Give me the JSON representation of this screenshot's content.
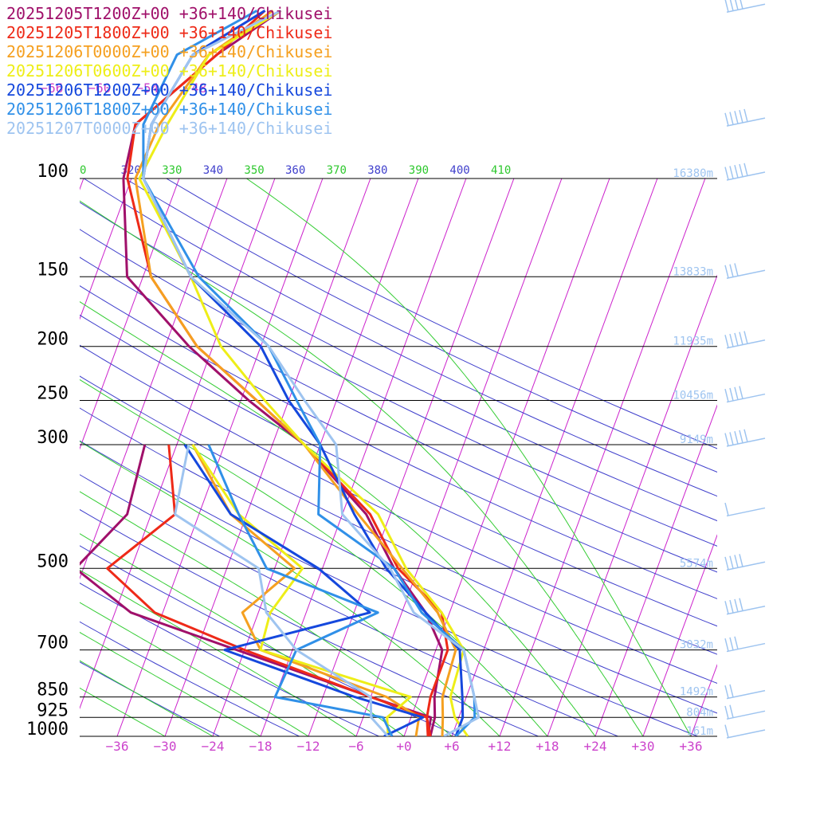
{
  "chart_data": {
    "type": "line",
    "title": "",
    "xlabel": "",
    "ylabel": "",
    "legend_position": "top-left",
    "legend": [
      {
        "label": "20251205T1200Z+00 +36+140/Chikusei",
        "color": "#a0106a"
      },
      {
        "label": "20251205T1800Z+00 +36+140/Chikusei",
        "color": "#ee2a18"
      },
      {
        "label": "20251206T0000Z+00 +36+140/Chikusei",
        "color": "#f5a020"
      },
      {
        "label": "20251206T0600Z+00 +36+140/Chikusei",
        "color": "#eeee18"
      },
      {
        "label": "20251206T1200Z+00 +36+140/Chikusei",
        "color": "#1548dd"
      },
      {
        "label": "20251206T1800Z+00 +36+140/Chikusei",
        "color": "#3090e8"
      },
      {
        "label": "20251207T0000Z+00 +36+140/Chikusei",
        "color": "#9ec4f0"
      }
    ],
    "pressure_ticks": [
      100,
      150,
      200,
      250,
      300,
      500,
      700,
      850,
      925,
      1000
    ],
    "temperature_ticks": [
      -36,
      -30,
      -24,
      -18,
      -12,
      -6,
      0,
      6,
      12,
      18,
      24,
      30,
      36
    ],
    "temperature_tick_labels": [
      "−36",
      "−30",
      "−24",
      "−18",
      "−12",
      "−6",
      "+0",
      "+6",
      "+12",
      "+18",
      "+24",
      "+30",
      "+36"
    ],
    "top_isotherm_labels": [
      {
        "t": -66,
        "text": "−66"
      },
      {
        "t": -60,
        "text": "−60"
      },
      {
        "t": -54,
        "text": "−54"
      },
      {
        "t": -48,
        "text": "−48"
      }
    ],
    "theta_labels": [
      {
        "text": "0",
        "color": "#2ec82e"
      },
      {
        "text": "320",
        "color": "#4040cc"
      },
      {
        "text": "330",
        "color": "#2ec82e"
      },
      {
        "text": "340",
        "color": "#4040cc"
      },
      {
        "text": "350",
        "color": "#2ec82e"
      },
      {
        "text": "360",
        "color": "#4040cc"
      },
      {
        "text": "370",
        "color": "#2ec82e"
      },
      {
        "text": "380",
        "color": "#4040cc"
      },
      {
        "text": "390",
        "color": "#2ec82e"
      },
      {
        "text": "400",
        "color": "#4040cc"
      },
      {
        "text": "410",
        "color": "#2ec82e"
      }
    ],
    "height_labels": [
      {
        "p": 100,
        "text": "16380m"
      },
      {
        "p": 150,
        "text": "13833m"
      },
      {
        "p": 200,
        "text": "11935m"
      },
      {
        "p": 250,
        "text": "10456m"
      },
      {
        "p": 300,
        "text": "9149m"
      },
      {
        "p": 500,
        "text": "5574m"
      },
      {
        "p": 700,
        "text": "3032m"
      },
      {
        "p": 850,
        "text": "1492m"
      },
      {
        "p": 925,
        "text": "804m"
      },
      {
        "p": 1000,
        "text": "161m"
      }
    ],
    "colors": {
      "isobar": "#000000",
      "isotherm": "#cc22cc",
      "dry_adiabat": "#4040cc",
      "moist_adiabat": "#33cc33",
      "tick_label": "#cc44cc",
      "pressure_label": "#000000",
      "height_label": "#9ec4f0",
      "wind_barb": "#9ec4f0"
    },
    "series": [
      {
        "name": "20251205T1200Z+00 +36+140/Chikusei",
        "color": "#a0106a",
        "temperature": [
          {
            "p": 1000,
            "t": 3.3
          },
          {
            "p": 925,
            "t": 3.0
          },
          {
            "p": 850,
            "t": 2.0
          },
          {
            "p": 700,
            "t": 0.8
          },
          {
            "p": 600,
            "t": -3.0
          },
          {
            "p": 500,
            "t": -9.0
          },
          {
            "p": 400,
            "t": -15.0
          },
          {
            "p": 300,
            "t": -26.0
          },
          {
            "p": 250,
            "t": -35.0
          },
          {
            "p": 200,
            "t": -45.0
          },
          {
            "p": 150,
            "t": -56.0
          },
          {
            "p": 100,
            "t": -61.0
          },
          {
            "p": 80,
            "t": -62.0
          },
          {
            "p": 60,
            "t": -55.0
          },
          {
            "p": 50,
            "t": -49.0
          }
        ],
        "dewpoint": [
          {
            "p": 1000,
            "t": 3.0
          },
          {
            "p": 925,
            "t": 2.5
          },
          {
            "p": 850,
            "t": -6.0
          },
          {
            "p": 700,
            "t": -25.0
          },
          {
            "p": 600,
            "t": -40.0
          },
          {
            "p": 500,
            "t": -49.0
          },
          {
            "p": 400,
            "t": -45.0
          },
          {
            "p": 300,
            "t": -46.0
          }
        ]
      },
      {
        "name": "20251205T1800Z+00 +36+140/Chikusei",
        "color": "#ee2a18",
        "temperature": [
          {
            "p": 1000,
            "t": 3.3
          },
          {
            "p": 925,
            "t": 2.0
          },
          {
            "p": 850,
            "t": 1.5
          },
          {
            "p": 700,
            "t": 1.5
          },
          {
            "p": 600,
            "t": -1.0
          },
          {
            "p": 500,
            "t": -8.5
          },
          {
            "p": 400,
            "t": -14.5
          },
          {
            "p": 300,
            "t": -26.0
          },
          {
            "p": 250,
            "t": -34.0
          },
          {
            "p": 200,
            "t": -44.0
          },
          {
            "p": 150,
            "t": -53.0
          },
          {
            "p": 100,
            "t": -60.5
          },
          {
            "p": 80,
            "t": -62.0
          },
          {
            "p": 60,
            "t": -55.0
          },
          {
            "p": 50,
            "t": -51.0
          }
        ],
        "dewpoint": [
          {
            "p": 1000,
            "t": 3.0
          },
          {
            "p": 925,
            "t": 2.0
          },
          {
            "p": 850,
            "t": -6.0
          },
          {
            "p": 700,
            "t": -24.0
          },
          {
            "p": 600,
            "t": -37.0
          },
          {
            "p": 500,
            "t": -45.0
          },
          {
            "p": 400,
            "t": -39.0
          },
          {
            "p": 300,
            "t": -43.0
          }
        ]
      },
      {
        "name": "20251206T0000Z+00 +36+140/Chikusei",
        "color": "#f5a020",
        "temperature": [
          {
            "p": 1000,
            "t": 4.8
          },
          {
            "p": 925,
            "t": 4.0
          },
          {
            "p": 850,
            "t": 3.0
          },
          {
            "p": 700,
            "t": 2.5
          },
          {
            "p": 600,
            "t": -1.5
          },
          {
            "p": 500,
            "t": -8.0
          },
          {
            "p": 400,
            "t": -16.0
          },
          {
            "p": 300,
            "t": -26.0
          },
          {
            "p": 250,
            "t": -34.0
          },
          {
            "p": 200,
            "t": -44.0
          },
          {
            "p": 150,
            "t": -53.0
          },
          {
            "p": 100,
            "t": -59.5
          },
          {
            "p": 80,
            "t": -59.0
          },
          {
            "p": 60,
            "t": -56.0
          },
          {
            "p": 50,
            "t": -50.0
          }
        ],
        "dewpoint": [
          {
            "p": 1000,
            "t": 1.5
          },
          {
            "p": 925,
            "t": 1.0
          },
          {
            "p": 850,
            "t": -4.0
          },
          {
            "p": 700,
            "t": -22.0
          },
          {
            "p": 600,
            "t": -26.0
          },
          {
            "p": 500,
            "t": -21.5
          },
          {
            "p": 400,
            "t": -32.0
          },
          {
            "p": 300,
            "t": -40.0
          }
        ]
      },
      {
        "name": "20251206T0600Z+00 +36+140/Chikusei",
        "color": "#eeee18",
        "temperature": [
          {
            "p": 1000,
            "t": 8.0
          },
          {
            "p": 925,
            "t": 5.5
          },
          {
            "p": 850,
            "t": 4.0
          },
          {
            "p": 700,
            "t": 3.5
          },
          {
            "p": 600,
            "t": -1.0
          },
          {
            "p": 500,
            "t": -7.5
          },
          {
            "p": 400,
            "t": -13.5
          },
          {
            "p": 300,
            "t": -26.0
          },
          {
            "p": 250,
            "t": -33.0
          },
          {
            "p": 200,
            "t": -41.0
          },
          {
            "p": 150,
            "t": -48.0
          },
          {
            "p": 100,
            "t": -59.0
          },
          {
            "p": 80,
            "t": -58.0
          },
          {
            "p": 60,
            "t": -56.0
          },
          {
            "p": 50,
            "t": -49.0
          }
        ],
        "dewpoint": [
          {
            "p": 1000,
            "t": -2.0
          },
          {
            "p": 925,
            "t": -3.0
          },
          {
            "p": 850,
            "t": -1.0
          },
          {
            "p": 700,
            "t": -22.0
          },
          {
            "p": 600,
            "t": -22.5
          },
          {
            "p": 500,
            "t": -20.5
          },
          {
            "p": 400,
            "t": -31.0
          },
          {
            "p": 300,
            "t": -40.0
          }
        ]
      },
      {
        "name": "20251206T1200Z+00 +36+140/Chikusei",
        "color": "#1548dd",
        "temperature": [
          {
            "p": 1000,
            "t": 6.5
          },
          {
            "p": 925,
            "t": 6.5
          },
          {
            "p": 850,
            "t": 5.5
          },
          {
            "p": 700,
            "t": 3.0
          },
          {
            "p": 600,
            "t": -3.0
          },
          {
            "p": 500,
            "t": -10.0
          },
          {
            "p": 400,
            "t": -16.5
          },
          {
            "p": 300,
            "t": -24.0
          },
          {
            "p": 250,
            "t": -30.0
          },
          {
            "p": 200,
            "t": -36.0
          },
          {
            "p": 150,
            "t": -48.0
          },
          {
            "p": 100,
            "t": -58.5
          },
          {
            "p": 80,
            "t": -60.0
          },
          {
            "p": 60,
            "t": -58.0
          },
          {
            "p": 50,
            "t": -51.0
          }
        ],
        "dewpoint": [
          {
            "p": 1000,
            "t": -2.5
          },
          {
            "p": 925,
            "t": 1.5
          },
          {
            "p": 850,
            "t": -8.0
          },
          {
            "p": 700,
            "t": -26.5
          },
          {
            "p": 600,
            "t": -10.0
          },
          {
            "p": 500,
            "t": -18.5
          },
          {
            "p": 400,
            "t": -32.0
          },
          {
            "p": 300,
            "t": -41.0
          }
        ]
      },
      {
        "name": "20251206T1800Z+00 +36+140/Chikusei",
        "color": "#3090e8",
        "temperature": [
          {
            "p": 1000,
            "t": 6.5
          },
          {
            "p": 925,
            "t": 8.0
          },
          {
            "p": 850,
            "t": 7.0
          },
          {
            "p": 700,
            "t": 3.5
          },
          {
            "p": 600,
            "t": -3.5
          },
          {
            "p": 500,
            "t": -9.0
          },
          {
            "p": 400,
            "t": -21.0
          },
          {
            "p": 300,
            "t": -24.0
          },
          {
            "p": 250,
            "t": -29.0
          },
          {
            "p": 200,
            "t": -35.0
          },
          {
            "p": 150,
            "t": -47.0
          },
          {
            "p": 100,
            "t": -58.5
          },
          {
            "p": 80,
            "t": -61.0
          },
          {
            "p": 60,
            "t": -60.0
          },
          {
            "p": 50,
            "t": -52.0
          }
        ],
        "dewpoint": [
          {
            "p": 1000,
            "t": -1.5
          },
          {
            "p": 925,
            "t": -3.5
          },
          {
            "p": 850,
            "t": -18.0
          },
          {
            "p": 700,
            "t": -17.5
          },
          {
            "p": 600,
            "t": -9.0
          },
          {
            "p": 500,
            "t": -25.0
          },
          {
            "p": 400,
            "t": -31.0
          },
          {
            "p": 300,
            "t": -38.0
          }
        ]
      },
      {
        "name": "20251207T0000Z+00 +36+140/Chikusei",
        "color": "#9ec4f0",
        "temperature": [
          {
            "p": 1000,
            "t": 5.0
          },
          {
            "p": 925,
            "t": 8.5
          },
          {
            "p": 850,
            "t": 7.0
          },
          {
            "p": 700,
            "t": 3.5
          },
          {
            "p": 600,
            "t": -4.5
          },
          {
            "p": 500,
            "t": -9.5
          },
          {
            "p": 400,
            "t": -18.0
          },
          {
            "p": 300,
            "t": -22.0
          },
          {
            "p": 250,
            "t": -28.0
          },
          {
            "p": 200,
            "t": -35.0
          },
          {
            "p": 150,
            "t": -48.0
          },
          {
            "p": 100,
            "t": -58.5
          },
          {
            "p": 80,
            "t": -60.0
          },
          {
            "p": 60,
            "t": -58.0
          },
          {
            "p": 50,
            "t": -49.0
          }
        ],
        "dewpoint": [
          {
            "p": 1000,
            "t": -2.0
          },
          {
            "p": 925,
            "t": -5.0
          },
          {
            "p": 850,
            "t": -6.0
          },
          {
            "p": 700,
            "t": -17.5
          },
          {
            "p": 600,
            "t": -23.0
          },
          {
            "p": 500,
            "t": -26.0
          },
          {
            "p": 400,
            "t": -39.0
          },
          {
            "p": 300,
            "t": -40.5
          }
        ]
      }
    ],
    "wind_barbs": [
      {
        "p": 50,
        "barbs": 4,
        "flags": 0
      },
      {
        "p": 80,
        "barbs": 5,
        "flags": 0
      },
      {
        "p": 100,
        "barbs": 5,
        "flags": 0
      },
      {
        "p": 150,
        "barbs": 3,
        "flags": 0
      },
      {
        "p": 200,
        "barbs": 5,
        "flags": 0
      },
      {
        "p": 250,
        "barbs": 4,
        "flags": 0
      },
      {
        "p": 300,
        "barbs": 5,
        "flags": 0
      },
      {
        "p": 400,
        "barbs": 1,
        "flags": 0
      },
      {
        "p": 500,
        "barbs": 4,
        "flags": 0
      },
      {
        "p": 600,
        "barbs": 4,
        "flags": 0
      },
      {
        "p": 700,
        "barbs": 3,
        "flags": 0
      },
      {
        "p": 850,
        "barbs": 2,
        "flags": 0
      },
      {
        "p": 925,
        "barbs": 2,
        "flags": 0
      },
      {
        "p": 1000,
        "barbs": 1,
        "flags": 0
      }
    ]
  }
}
